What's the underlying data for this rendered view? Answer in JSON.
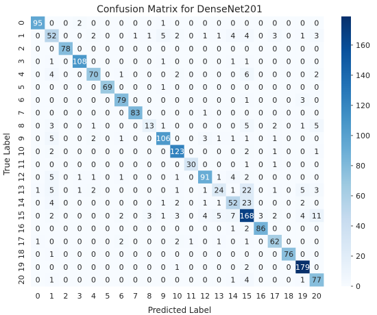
{
  "chart_data": {
    "type": "heatmap",
    "title": "Confusion Matrix for DenseNet201",
    "xlabel": "Predicted Label",
    "ylabel": "True Label",
    "x_ticks": [
      "0",
      "1",
      "2",
      "3",
      "4",
      "5",
      "6",
      "7",
      "8",
      "9",
      "10",
      "11",
      "12",
      "13",
      "14",
      "15",
      "16",
      "17",
      "18",
      "19",
      "20"
    ],
    "y_ticks": [
      "0",
      "1",
      "2",
      "3",
      "4",
      "5",
      "6",
      "7",
      "8",
      "9",
      "10",
      "11",
      "12",
      "13",
      "14",
      "15",
      "16",
      "17",
      "18",
      "19",
      "20"
    ],
    "colorbar_ticks": [
      0,
      20,
      40,
      60,
      80,
      100,
      120,
      140,
      160
    ],
    "value_range": [
      0,
      179
    ],
    "colormap": [
      "#f7fbff",
      "#deebf7",
      "#c6dbef",
      "#9ecae1",
      "#6baed6",
      "#4292c6",
      "#2171b5",
      "#08519c",
      "#08306b"
    ],
    "matrix": [
      [
        95,
        0,
        0,
        2,
        0,
        0,
        0,
        0,
        0,
        1,
        0,
        0,
        0,
        0,
        0,
        0,
        0,
        0,
        0,
        0,
        0
      ],
      [
        0,
        52,
        0,
        0,
        2,
        0,
        0,
        1,
        1,
        5,
        2,
        0,
        1,
        1,
        4,
        4,
        0,
        3,
        0,
        1,
        3
      ],
      [
        0,
        0,
        78,
        0,
        0,
        0,
        0,
        0,
        0,
        0,
        0,
        0,
        0,
        0,
        0,
        0,
        0,
        0,
        0,
        0,
        0
      ],
      [
        0,
        1,
        0,
        108,
        0,
        0,
        0,
        0,
        0,
        1,
        0,
        0,
        0,
        0,
        1,
        1,
        0,
        0,
        0,
        0,
        0
      ],
      [
        0,
        4,
        0,
        0,
        70,
        0,
        1,
        0,
        0,
        0,
        2,
        0,
        0,
        0,
        0,
        6,
        0,
        0,
        0,
        0,
        2
      ],
      [
        0,
        0,
        0,
        0,
        0,
        69,
        0,
        0,
        0,
        1,
        0,
        0,
        0,
        0,
        0,
        0,
        0,
        0,
        0,
        0,
        0
      ],
      [
        0,
        0,
        0,
        0,
        0,
        0,
        79,
        0,
        0,
        0,
        0,
        0,
        0,
        0,
        0,
        1,
        0,
        0,
        0,
        3,
        0
      ],
      [
        0,
        0,
        0,
        0,
        0,
        0,
        0,
        83,
        0,
        0,
        0,
        0,
        1,
        0,
        0,
        0,
        0,
        0,
        0,
        0,
        0
      ],
      [
        0,
        3,
        0,
        0,
        1,
        0,
        0,
        0,
        13,
        1,
        0,
        0,
        0,
        0,
        0,
        5,
        0,
        2,
        0,
        1,
        5
      ],
      [
        0,
        5,
        0,
        0,
        2,
        0,
        1,
        0,
        0,
        106,
        0,
        0,
        3,
        1,
        1,
        1,
        0,
        1,
        0,
        0,
        0
      ],
      [
        0,
        2,
        0,
        0,
        0,
        0,
        0,
        0,
        0,
        0,
        123,
        0,
        0,
        0,
        0,
        2,
        0,
        1,
        0,
        0,
        1
      ],
      [
        0,
        0,
        0,
        0,
        0,
        0,
        0,
        0,
        0,
        0,
        0,
        30,
        0,
        0,
        0,
        1,
        0,
        1,
        0,
        0,
        0
      ],
      [
        0,
        5,
        0,
        1,
        1,
        0,
        1,
        0,
        0,
        0,
        1,
        0,
        91,
        1,
        4,
        2,
        0,
        0,
        0,
        0,
        0
      ],
      [
        1,
        5,
        0,
        1,
        2,
        0,
        0,
        0,
        0,
        0,
        1,
        0,
        1,
        24,
        1,
        22,
        0,
        1,
        0,
        5,
        3
      ],
      [
        0,
        4,
        0,
        0,
        0,
        0,
        0,
        0,
        0,
        1,
        2,
        0,
        1,
        1,
        52,
        23,
        0,
        0,
        0,
        2,
        0
      ],
      [
        0,
        2,
        0,
        0,
        0,
        0,
        2,
        0,
        3,
        1,
        3,
        0,
        4,
        5,
        7,
        168,
        3,
        2,
        0,
        4,
        11
      ],
      [
        0,
        0,
        0,
        0,
        0,
        0,
        0,
        0,
        0,
        0,
        0,
        0,
        0,
        0,
        1,
        2,
        86,
        0,
        0,
        0,
        0
      ],
      [
        1,
        0,
        0,
        0,
        0,
        0,
        2,
        0,
        0,
        0,
        2,
        1,
        0,
        1,
        0,
        1,
        0,
        62,
        0,
        0,
        0
      ],
      [
        0,
        1,
        0,
        0,
        0,
        0,
        0,
        0,
        0,
        0,
        0,
        0,
        0,
        0,
        0,
        0,
        0,
        0,
        76,
        0,
        0
      ],
      [
        0,
        0,
        0,
        0,
        0,
        0,
        0,
        0,
        0,
        0,
        1,
        0,
        0,
        0,
        0,
        2,
        0,
        0,
        0,
        179,
        0
      ],
      [
        0,
        1,
        0,
        0,
        0,
        0,
        0,
        0,
        0,
        0,
        0,
        0,
        0,
        0,
        1,
        4,
        0,
        0,
        0,
        1,
        77
      ]
    ]
  }
}
